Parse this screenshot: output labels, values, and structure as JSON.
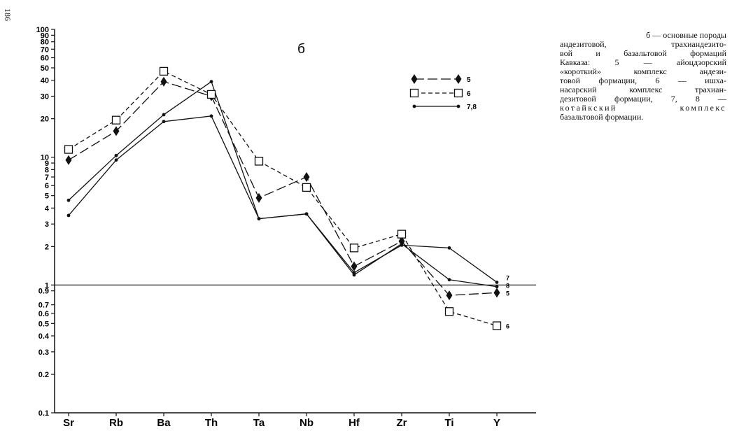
{
  "page": {
    "number": "186"
  },
  "chart_data": {
    "type": "line",
    "panel_label": "б",
    "y_scale": "log",
    "ylim": [
      0.1,
      100
    ],
    "y_tick_labels": [
      "100",
      "90",
      "80",
      "70",
      "60",
      "50",
      "40",
      "30",
      "20",
      "10",
      "9",
      "8",
      "7",
      "6",
      "5",
      "4",
      "3",
      "2",
      "1",
      "0.9",
      "0.7",
      "0.6",
      "0.5",
      "0.4",
      "0.3",
      "0.2",
      "0.1"
    ],
    "y_tick_values": [
      100,
      90,
      80,
      70,
      60,
      50,
      40,
      30,
      20,
      10,
      9,
      8,
      7,
      6,
      5,
      4,
      3,
      2,
      1,
      0.9,
      0.7,
      0.6,
      0.5,
      0.4,
      0.3,
      0.2,
      0.1
    ],
    "reference_line": 1,
    "categories": [
      "Sr",
      "Rb",
      "Ba",
      "Th",
      "Ta",
      "Nb",
      "Hf",
      "Zr",
      "Ti",
      "Y"
    ],
    "series": [
      {
        "name": "5",
        "marker": "diamond",
        "style": "long-dash",
        "end_label": "5",
        "values": [
          9.5,
          16,
          39,
          30,
          4.8,
          7,
          1.4,
          2.2,
          0.83,
          0.87
        ]
      },
      {
        "name": "6",
        "marker": "square",
        "style": "dashed",
        "end_label": "6",
        "values": [
          11.5,
          19.5,
          47,
          31,
          9.3,
          5.8,
          1.95,
          2.5,
          0.62,
          0.48
        ]
      },
      {
        "name": "7",
        "marker": "dot",
        "style": "solid",
        "end_label": "7",
        "values": [
          4.6,
          10.3,
          21.5,
          39,
          3.3,
          3.6,
          1.25,
          2.05,
          1.95,
          1.05
        ]
      },
      {
        "name": "8",
        "marker": "dot",
        "style": "solid",
        "end_label": "8",
        "values": [
          3.5,
          9.5,
          19,
          21,
          3.3,
          3.6,
          1.2,
          2.1,
          1.1,
          0.97
        ]
      }
    ],
    "legend": [
      {
        "label": "5",
        "marker": "diamond",
        "style": "long-dash"
      },
      {
        "label": "6",
        "marker": "square",
        "style": "dashed"
      },
      {
        "label": "7,8",
        "marker": "dot",
        "style": "solid"
      }
    ],
    "legend_placement": "top-right",
    "grid": false
  },
  "caption_lines": [
    "б — основные породы",
    "андезитовой, трахиандезито-",
    "вой и базальтовой формаций",
    "Кавказа: 5 — айоцдзорский",
    "«короткий» комплекс андези-",
    "товой формации, 6 — ишха-",
    "насарский комплекс трахиан-",
    "дезитовой формации, 7, 8 —",
    "котайкский комплекс",
    "базальтовой формации."
  ]
}
